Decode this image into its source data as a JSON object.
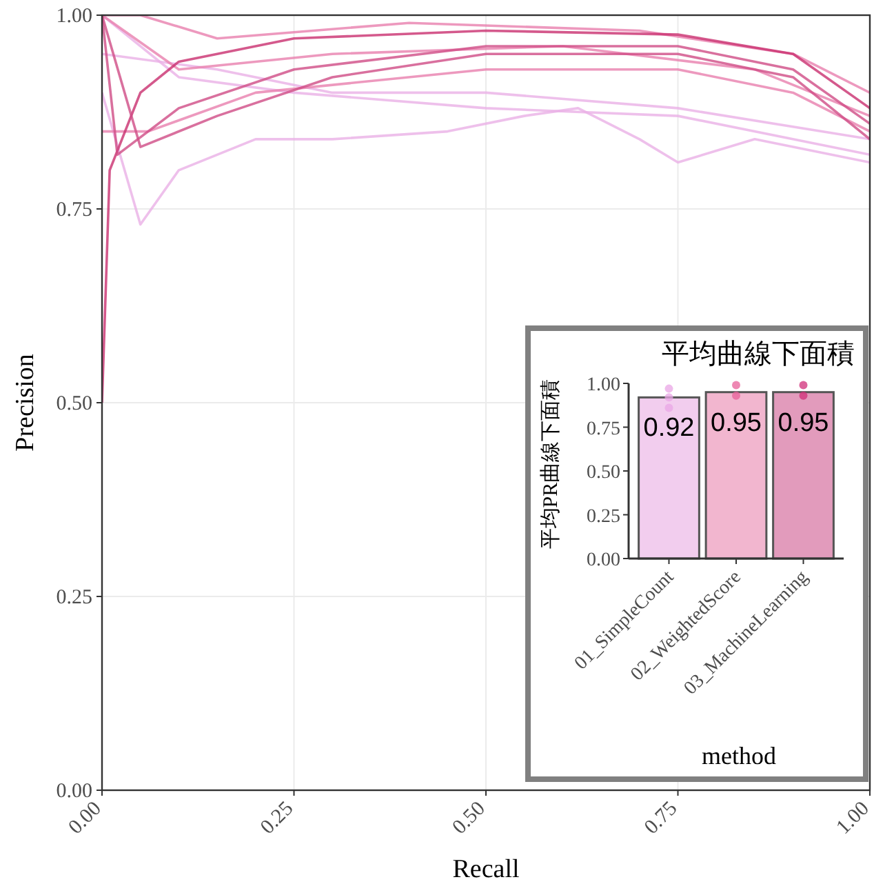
{
  "chart_data": [
    {
      "type": "line",
      "xlabel": "Recall",
      "ylabel": "Precision",
      "xlim": [
        0,
        1
      ],
      "ylim": [
        0,
        1
      ],
      "grid": true,
      "xticks": [
        {
          "value": 0,
          "label": "0.00"
        },
        {
          "value": 0.25,
          "label": "0.25"
        },
        {
          "value": 0.5,
          "label": "0.50"
        },
        {
          "value": 0.75,
          "label": "0.75"
        },
        {
          "value": 1,
          "label": "1.00"
        }
      ],
      "yticks": [
        {
          "value": 0,
          "label": "0.00"
        },
        {
          "value": 0.25,
          "label": "0.25"
        },
        {
          "value": 0.5,
          "label": "0.50"
        },
        {
          "value": 0.75,
          "label": "0.75"
        },
        {
          "value": 1,
          "label": "1.00"
        }
      ],
      "series": [
        {
          "color": "#eab0e6",
          "x": [
            0,
            0.05,
            0.1,
            0.2,
            0.3,
            0.45,
            0.55,
            0.62,
            0.7,
            0.75,
            0.85,
            1
          ],
          "values": [
            0.9,
            0.73,
            0.8,
            0.84,
            0.84,
            0.85,
            0.87,
            0.88,
            0.84,
            0.81,
            0.84,
            0.81
          ]
        },
        {
          "color": "#eab0e6",
          "x": [
            0,
            0.1,
            0.25,
            0.5,
            0.75,
            1
          ],
          "values": [
            1,
            0.92,
            0.9,
            0.88,
            0.87,
            0.82
          ]
        },
        {
          "color": "#eab0e6",
          "x": [
            0,
            0.15,
            0.3,
            0.5,
            0.75,
            1
          ],
          "values": [
            0.95,
            0.93,
            0.9,
            0.9,
            0.88,
            0.84
          ]
        },
        {
          "color": "#e87fae",
          "x": [
            0,
            0.05,
            0.15,
            0.4,
            0.7,
            0.9,
            1
          ],
          "values": [
            1,
            1,
            0.97,
            0.99,
            0.98,
            0.95,
            0.9
          ]
        },
        {
          "color": "#e87fae",
          "x": [
            0,
            0.06,
            0.2,
            0.5,
            0.75,
            0.9,
            1
          ],
          "values": [
            0.85,
            0.85,
            0.9,
            0.93,
            0.93,
            0.9,
            0.85
          ]
        },
        {
          "color": "#e87fae",
          "x": [
            0,
            0.1,
            0.3,
            0.6,
            0.85,
            1
          ],
          "values": [
            1,
            0.93,
            0.95,
            0.96,
            0.93,
            0.87
          ]
        },
        {
          "color": "#c9306f",
          "x": [
            0,
            0.01,
            0.05,
            0.1,
            0.25,
            0.5,
            0.75,
            0.9,
            1
          ],
          "values": [
            0.5,
            0.8,
            0.9,
            0.94,
            0.97,
            0.98,
            0.975,
            0.95,
            0.88
          ]
        },
        {
          "color": "#d04c86",
          "x": [
            0,
            0.02,
            0.1,
            0.25,
            0.5,
            0.75,
            0.9,
            1
          ],
          "values": [
            1,
            0.82,
            0.88,
            0.93,
            0.96,
            0.96,
            0.93,
            0.86
          ]
        },
        {
          "color": "#d04c86",
          "x": [
            0,
            0.05,
            0.15,
            0.3,
            0.5,
            0.75,
            0.9,
            1
          ],
          "values": [
            1,
            0.83,
            0.87,
            0.92,
            0.95,
            0.95,
            0.92,
            0.84
          ]
        }
      ]
    },
    {
      "type": "bar",
      "title": "平均曲線下面積",
      "xlabel": "method",
      "ylabel": "平均PR曲線下面積",
      "ylim": [
        0,
        1
      ],
      "yticks": [
        {
          "value": 0,
          "label": "0.00"
        },
        {
          "value": 0.25,
          "label": "0.25"
        },
        {
          "value": 0.5,
          "label": "0.50"
        },
        {
          "value": 0.75,
          "label": "0.75"
        },
        {
          "value": 1,
          "label": "1.00"
        }
      ],
      "categories": [
        "01_SimpleCount",
        "02_WeightedScore",
        "03_MachineLearning"
      ],
      "series": [
        {
          "type": "bar",
          "colors": [
            "#f2cdee",
            "#f2b6cf",
            "#e29bbc"
          ],
          "values": [
            0.92,
            0.95,
            0.95
          ],
          "value_labels": [
            "0.92",
            "0.95",
            "0.95"
          ]
        },
        {
          "type": "scatter",
          "color": "#e9a6e6",
          "x": [
            "01_SimpleCount",
            "01_SimpleCount",
            "01_SimpleCount"
          ],
          "values": [
            0.97,
            0.92,
            0.86
          ]
        },
        {
          "type": "scatter",
          "color": "#e8609a",
          "x": [
            "02_WeightedScore",
            "02_WeightedScore"
          ],
          "values": [
            0.99,
            0.93
          ]
        },
        {
          "type": "scatter",
          "color": "#d02f7a",
          "x": [
            "03_MachineLearning",
            "03_MachineLearning"
          ],
          "values": [
            0.99,
            0.93
          ]
        }
      ]
    }
  ]
}
